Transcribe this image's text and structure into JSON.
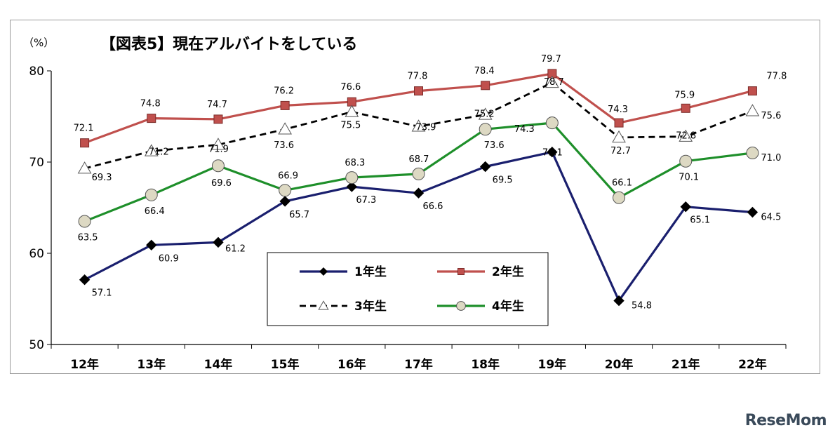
{
  "chart_data": {
    "type": "line",
    "title": "【図表5】現在アルバイトをしている",
    "ylabel": "（%）",
    "ylim": [
      50,
      80
    ],
    "yticks": [
      50,
      60,
      70,
      80
    ],
    "grid": false,
    "legend_position": "bottom-center",
    "categories": [
      "12年",
      "13年",
      "14年",
      "15年",
      "16年",
      "17年",
      "18年",
      "19年",
      "20年",
      "21年",
      "22年"
    ],
    "series": [
      {
        "name": "1年生",
        "color": "#1a1f6e",
        "marker": "diamond",
        "dash": "solid",
        "values": [
          57.1,
          60.9,
          61.2,
          65.7,
          67.3,
          66.6,
          69.5,
          71.1,
          54.8,
          65.1,
          64.5
        ]
      },
      {
        "name": "2年生",
        "color": "#c0504d",
        "marker": "square",
        "dash": "solid",
        "values": [
          72.1,
          74.8,
          74.7,
          76.2,
          76.6,
          77.8,
          78.4,
          79.7,
          74.3,
          75.9,
          77.8
        ]
      },
      {
        "name": "3年生",
        "color": "#000000",
        "marker": "triangle",
        "dash": "dashed",
        "values": [
          69.3,
          71.2,
          71.9,
          73.6,
          75.5,
          73.9,
          75.2,
          78.7,
          72.7,
          72.8,
          75.6
        ]
      },
      {
        "name": "4年生",
        "color": "#1e8f2a",
        "marker": "circle",
        "dash": "solid",
        "values": [
          63.5,
          66.4,
          69.6,
          66.9,
          68.3,
          68.7,
          73.6,
          74.3,
          66.1,
          70.1,
          71.0
        ]
      }
    ]
  },
  "watermark": "ReseMom"
}
